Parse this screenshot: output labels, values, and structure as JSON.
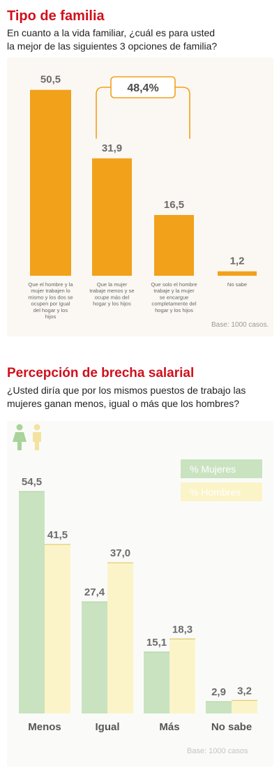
{
  "charts": [
    {
      "title": "Tipo de familia",
      "subtitle_lines": [
        "En cuanto a la vida familiar, ¿cuál es para usted",
        "la mejor de las siguientes 3 opciones de familia?"
      ],
      "bracket_label": "48,4%",
      "base_note": "Base: 1000 casos.",
      "colors": {
        "bar": "#f2a11a",
        "value_text": "#6b6b6b"
      }
    },
    {
      "title": "Percepción de brecha salarial",
      "subtitle_lines": [
        "¿Usted diría que por los mismos puestos de trabajo las",
        "mujeres ganan menos, igual o más que los hombres?"
      ],
      "base_note": "Base: 1000 casos",
      "icons": [
        "woman-icon",
        "man-icon"
      ],
      "colors": {
        "mujeres": "#c9e3c0",
        "hombres": "#fbf4c8",
        "value_text": "#6b6b6b"
      }
    }
  ],
  "chart_data": [
    {
      "type": "bar",
      "title": "Tipo de familia",
      "categories": [
        "Que el hombre y la mujer trabajen lo mismo y los dos se ocupen por igual del hogar y los hijos",
        "Que la mujer trabaje menos y se ocupe más del hogar y los hijos",
        "Que solo el hombre trabaje y la mujer se encargue completamente del hogar y los hijos",
        "No sabe"
      ],
      "value_labels": [
        "50,5",
        "31,9",
        "16,5",
        "1,2"
      ],
      "values": [
        50.5,
        31.9,
        16.5,
        1.2
      ],
      "ylim": [
        0,
        55
      ],
      "grid": false,
      "annotations": [
        "48,4%"
      ]
    },
    {
      "type": "bar",
      "title": "Percepción de brecha salarial",
      "categories": [
        "Menos",
        "Igual",
        "Más",
        "No sabe"
      ],
      "series": [
        {
          "name": "%  Mujeres",
          "values": [
            54.5,
            27.4,
            15.1,
            2.9
          ],
          "value_labels": [
            "54,5",
            "27,4",
            "15,1",
            "2,9"
          ]
        },
        {
          "name": "%  Hombres",
          "values": [
            41.5,
            37.0,
            18.3,
            3.2
          ],
          "value_labels": [
            "41,5",
            "37,0",
            "18,3",
            "3,2"
          ]
        }
      ],
      "ylim": [
        0,
        60
      ],
      "grid": false,
      "legend": "top-right"
    }
  ]
}
